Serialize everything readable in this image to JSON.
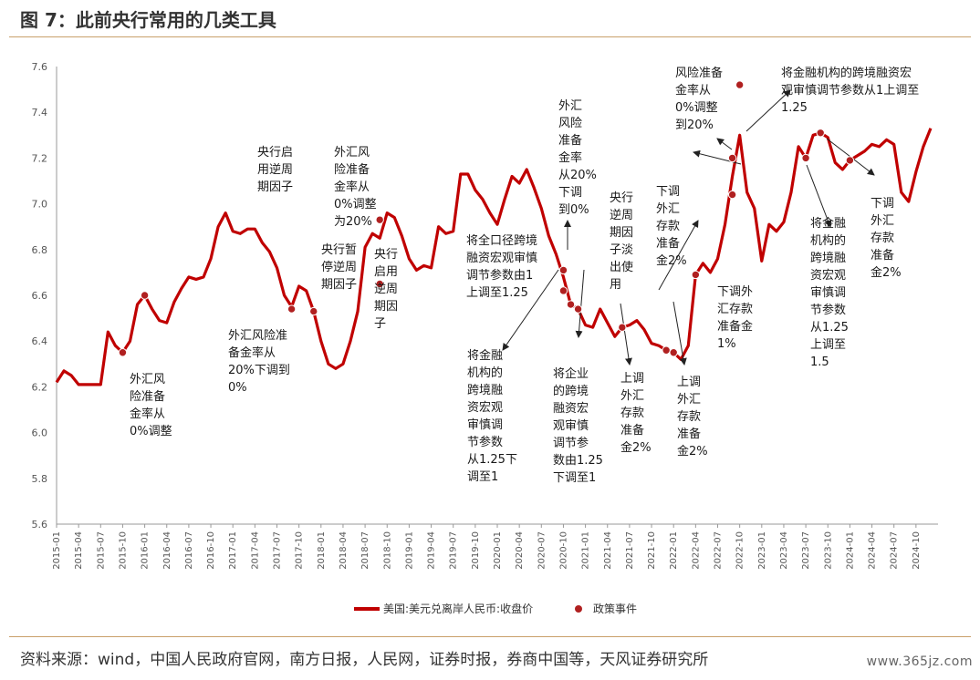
{
  "header": {
    "title": "图 7：此前央行常用的几类工具"
  },
  "footer": {
    "source": "资料来源：wind，中国人民政府官网，南方日报，人民网，证券时报，券商中国等，天风证券研究所",
    "watermark": "www.365jz.com"
  },
  "colors": {
    "series": "#c00000",
    "event": "#b02020",
    "rule": "#c9a06a"
  },
  "chart_data": {
    "type": "line",
    "title": "",
    "xlabel": "",
    "ylabel": "",
    "ylim": [
      5.6,
      7.6
    ],
    "yticks": [
      5.6,
      5.8,
      6.0,
      6.2,
      6.4,
      6.6,
      6.8,
      7.0,
      7.2,
      7.4,
      7.6
    ],
    "ytick_labels": [
      "5.6",
      "5.8",
      "6.0",
      "6.2",
      "6.4",
      "6.6",
      "6.8",
      "7.0",
      "7.2",
      "7.4",
      "7.6"
    ],
    "xlim": [
      "2015-01",
      "2025-01"
    ],
    "xtick_labels": [
      "2015-01",
      "2015-04",
      "2015-07",
      "2015-10",
      "2016-01",
      "2016-04",
      "2016-07",
      "2016-10",
      "2017-01",
      "2017-04",
      "2017-07",
      "2017-10",
      "2018-01",
      "2018-04",
      "2018-07",
      "2018-10",
      "2019-01",
      "2019-04",
      "2019-07",
      "2019-10",
      "2020-01",
      "2020-04",
      "2020-07",
      "2020-10",
      "2021-01",
      "2021-04",
      "2021-07",
      "2021-10",
      "2022-01",
      "2022-04",
      "2022-07",
      "2022-10",
      "2023-01",
      "2023-04",
      "2023-07",
      "2023-10",
      "2024-01",
      "2024-04",
      "2024-07",
      "2024-10"
    ],
    "grid": false,
    "legend_position": "bottom",
    "legend": [
      {
        "label": "美国:美元兑离岸人民币:收盘价",
        "kind": "line"
      },
      {
        "label": "政策事件",
        "kind": "marker"
      }
    ],
    "series": [
      {
        "name": "美国:美元兑离岸人民币:收盘价",
        "x": [
          "2015-01",
          "2015-02",
          "2015-03",
          "2015-04",
          "2015-05",
          "2015-06",
          "2015-07",
          "2015-08",
          "2015-09",
          "2015-10",
          "2015-11",
          "2015-12",
          "2016-01",
          "2016-02",
          "2016-03",
          "2016-04",
          "2016-05",
          "2016-06",
          "2016-07",
          "2016-08",
          "2016-09",
          "2016-10",
          "2016-11",
          "2016-12",
          "2017-01",
          "2017-02",
          "2017-03",
          "2017-04",
          "2017-05",
          "2017-06",
          "2017-07",
          "2017-08",
          "2017-09",
          "2017-10",
          "2017-11",
          "2017-12",
          "2018-01",
          "2018-02",
          "2018-03",
          "2018-04",
          "2018-05",
          "2018-06",
          "2018-07",
          "2018-08",
          "2018-09",
          "2018-10",
          "2018-11",
          "2018-12",
          "2019-01",
          "2019-02",
          "2019-03",
          "2019-04",
          "2019-05",
          "2019-06",
          "2019-07",
          "2019-08",
          "2019-09",
          "2019-10",
          "2019-11",
          "2019-12",
          "2020-01",
          "2020-02",
          "2020-03",
          "2020-04",
          "2020-05",
          "2020-06",
          "2020-07",
          "2020-08",
          "2020-09",
          "2020-10",
          "2020-11",
          "2020-12",
          "2021-01",
          "2021-02",
          "2021-03",
          "2021-04",
          "2021-05",
          "2021-06",
          "2021-07",
          "2021-08",
          "2021-09",
          "2021-10",
          "2021-11",
          "2021-12",
          "2022-01",
          "2022-02",
          "2022-03",
          "2022-04",
          "2022-05",
          "2022-06",
          "2022-07",
          "2022-08",
          "2022-09",
          "2022-10",
          "2022-11",
          "2022-12",
          "2023-01",
          "2023-02",
          "2023-03",
          "2023-04",
          "2023-05",
          "2023-06",
          "2023-07",
          "2023-08",
          "2023-09",
          "2023-10",
          "2023-11",
          "2023-12",
          "2024-01",
          "2024-02",
          "2024-03",
          "2024-04",
          "2024-05",
          "2024-06",
          "2024-07",
          "2024-08",
          "2024-09",
          "2024-10",
          "2024-11",
          "2024-12"
        ],
        "values": [
          6.22,
          6.27,
          6.25,
          6.21,
          6.21,
          6.21,
          6.21,
          6.44,
          6.38,
          6.35,
          6.4,
          6.56,
          6.6,
          6.54,
          6.49,
          6.48,
          6.57,
          6.63,
          6.68,
          6.67,
          6.68,
          6.76,
          6.9,
          6.96,
          6.88,
          6.87,
          6.89,
          6.89,
          6.83,
          6.79,
          6.72,
          6.6,
          6.55,
          6.64,
          6.62,
          6.53,
          6.4,
          6.3,
          6.28,
          6.3,
          6.4,
          6.53,
          6.81,
          6.87,
          6.85,
          6.96,
          6.94,
          6.86,
          6.76,
          6.71,
          6.73,
          6.72,
          6.9,
          6.87,
          6.88,
          7.13,
          7.13,
          7.06,
          7.02,
          6.96,
          6.91,
          7.02,
          7.12,
          7.09,
          7.15,
          7.07,
          6.98,
          6.86,
          6.78,
          6.68,
          6.56,
          6.54,
          6.47,
          6.46,
          6.54,
          6.48,
          6.42,
          6.46,
          6.47,
          6.49,
          6.45,
          6.39,
          6.38,
          6.36,
          6.35,
          6.32,
          6.38,
          6.69,
          6.74,
          6.7,
          6.76,
          6.91,
          7.12,
          7.3,
          7.05,
          6.98,
          6.75,
          6.91,
          6.88,
          6.92,
          7.05,
          7.25,
          7.2,
          7.3,
          7.31,
          7.29,
          7.18,
          7.15,
          7.19,
          7.21,
          7.23,
          7.26,
          7.25,
          7.28,
          7.26,
          7.05,
          7.01,
          7.14,
          7.25,
          7.33
        ]
      }
    ],
    "events": [
      "2015-10",
      "2016-01",
      "2017-09",
      "2017-12",
      "2018-09",
      "2018-09",
      "2020-10",
      "2020-10",
      "2020-11",
      "2020-12",
      "2021-06",
      "2021-12",
      "2022-01",
      "2022-04",
      "2022-09",
      "2022-09",
      "2022-10",
      "2023-07",
      "2023-09",
      "2024-01"
    ],
    "annotations": [
      {
        "lines": [
          "外汇风",
          "险准备",
          "金率从",
          "0%调整"
        ]
      },
      {
        "lines": [
          "央行启",
          "用逆周",
          "期因子"
        ]
      },
      {
        "lines": [
          "外汇风险准",
          "备金率从",
          "20%下调到",
          "0%"
        ]
      },
      {
        "lines": [
          "外汇风",
          "险准备",
          "金率从",
          "0%调整",
          "为20%"
        ]
      },
      {
        "lines": [
          "央行暂",
          "停逆周",
          "期因子"
        ]
      },
      {
        "lines": [
          "央行",
          "启用",
          "逆周",
          "期因",
          "子"
        ]
      },
      {
        "lines": [
          "将全口径跨境",
          "融资宏观审慎",
          "调节参数由1",
          "上调至1.25"
        ]
      },
      {
        "lines": [
          "外汇",
          "风险",
          "准备",
          "金率",
          "从20%",
          "下调",
          "到0%"
        ]
      },
      {
        "lines": [
          "央行",
          "逆周",
          "期因",
          "子淡",
          "出使",
          "用"
        ]
      },
      {
        "lines": [
          "将金融",
          "机构的",
          "跨境融",
          "资宏观",
          "审慎调",
          "节参数",
          "从1.25下",
          "调至1"
        ]
      },
      {
        "lines": [
          "将企业",
          "的跨境",
          "融资宏",
          "观审慎",
          "调节参",
          "数由1.25",
          "下调至1"
        ]
      },
      {
        "lines": [
          "上调",
          "外汇",
          "存款",
          "准备",
          "金2%"
        ]
      },
      {
        "lines": [
          "下调",
          "外汇",
          "存款",
          "准备",
          "金2%"
        ]
      },
      {
        "lines": [
          "上调",
          "外汇",
          "存款",
          "准备",
          "金2%"
        ]
      },
      {
        "lines": [
          "下调外",
          "汇存款",
          "准备金",
          "1%"
        ]
      },
      {
        "lines": [
          "风险准备",
          "金率从",
          "0%调整",
          "到20%"
        ]
      },
      {
        "lines": [
          "将金融机构的跨境融资宏",
          "观审慎调节参数从1上调至",
          "1.25"
        ]
      },
      {
        "lines": [
          "将金融",
          "机构的",
          "跨境融",
          "资宏观",
          "审慎调",
          "节参数",
          "从1.25",
          "上调至",
          "1.5"
        ]
      },
      {
        "lines": [
          "下调",
          "外汇",
          "存款",
          "准备",
          "金2%"
        ]
      }
    ]
  }
}
